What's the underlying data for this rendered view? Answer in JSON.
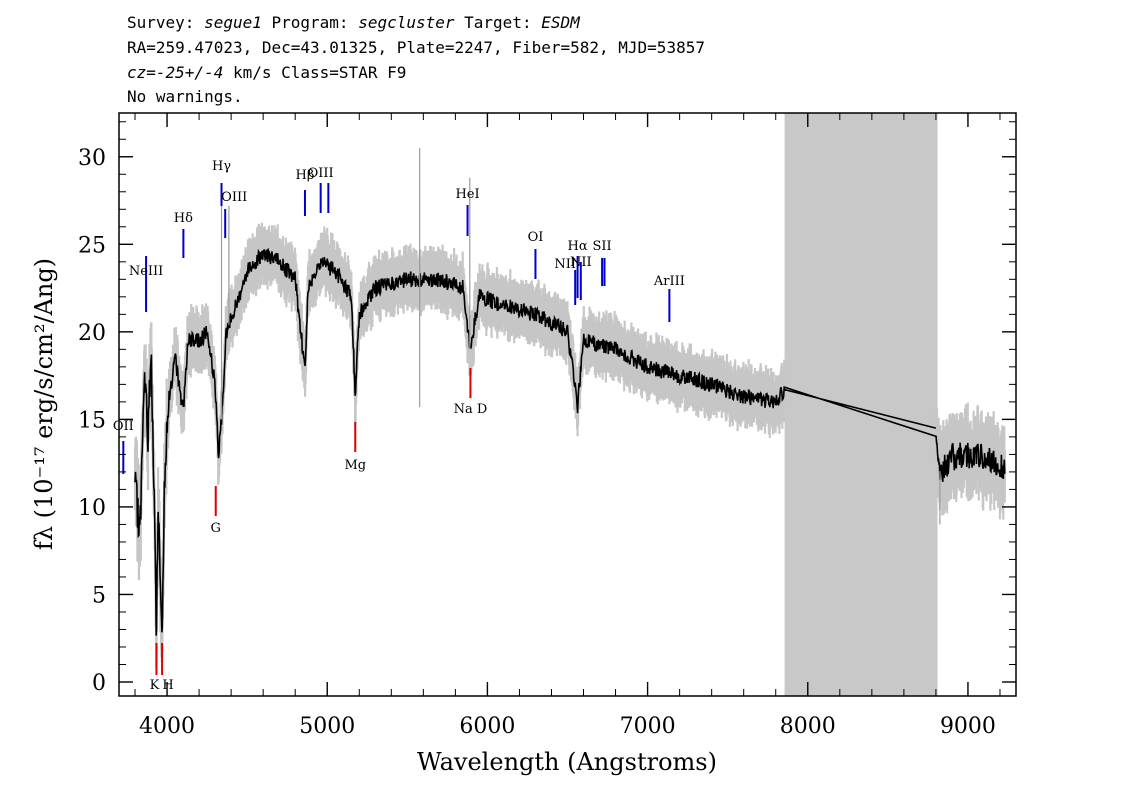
{
  "header": {
    "line1_parts": [
      {
        "text": "Survey: ",
        "style": "normal"
      },
      {
        "text": "segue1",
        "style": "italic"
      },
      {
        "text": " Program: ",
        "style": "normal"
      },
      {
        "text": "segcluster",
        "style": "italic"
      },
      {
        "text": " Target: ",
        "style": "normal"
      },
      {
        "text": "ESDM",
        "style": "italic"
      }
    ],
    "line2": "RA=259.47023, Dec=43.01325, Plate=2247, Fiber=582, MJD=53857",
    "line3_parts": [
      {
        "text": "cz=-25+/-4",
        "style": "italic"
      },
      {
        "text": " km/s Class=STAR F9",
        "style": "normal"
      }
    ],
    "line4": "No warnings."
  },
  "chart_data": {
    "type": "line",
    "xlabel": "Wavelength (Angstroms)",
    "ylabel": "fλ (10⁻¹⁷ erg/s/cm²/Ang)",
    "xlim": [
      3700,
      9300
    ],
    "ylim": [
      -0.8,
      32.5
    ],
    "xticks": [
      4000,
      5000,
      6000,
      7000,
      8000,
      9000
    ],
    "yticks": [
      0,
      5,
      10,
      15,
      20,
      25,
      30
    ],
    "grid": false,
    "colors": {
      "spectrum": "#000000",
      "error": "#c6c6c6",
      "mask": "#c8c8c8",
      "emission": "#0000cc",
      "absorption": "#dd0000"
    },
    "masked_region": [
      7855,
      8810
    ],
    "spectrum_knots": [
      [
        3800,
        11.2
      ],
      [
        3830,
        8.5
      ],
      [
        3860,
        17.5
      ],
      [
        3880,
        14
      ],
      [
        3900,
        19
      ],
      [
        3920,
        10
      ],
      [
        3933,
        2.8
      ],
      [
        3945,
        10
      ],
      [
        3968,
        2.6
      ],
      [
        3985,
        12
      ],
      [
        4010,
        16
      ],
      [
        4050,
        18.5
      ],
      [
        4101,
        15.5
      ],
      [
        4130,
        19.5
      ],
      [
        4200,
        19.5
      ],
      [
        4250,
        20
      ],
      [
        4300,
        17
      ],
      [
        4320,
        13
      ],
      [
        4340,
        15
      ],
      [
        4370,
        20
      ],
      [
        4450,
        22
      ],
      [
        4500,
        23.5
      ],
      [
        4600,
        24.5
      ],
      [
        4700,
        24
      ],
      [
        4800,
        23
      ],
      [
        4861,
        17.8
      ],
      [
        4880,
        22.5
      ],
      [
        4950,
        24
      ],
      [
        5050,
        23.5
      ],
      [
        5150,
        22
      ],
      [
        5175,
        16.5
      ],
      [
        5200,
        21
      ],
      [
        5300,
        22.5
      ],
      [
        5500,
        23
      ],
      [
        5700,
        23
      ],
      [
        5850,
        22.5
      ],
      [
        5890,
        19
      ],
      [
        5950,
        22
      ],
      [
        6100,
        21.5
      ],
      [
        6300,
        21
      ],
      [
        6500,
        20
      ],
      [
        6563,
        15.8
      ],
      [
        6600,
        19.5
      ],
      [
        6800,
        19
      ],
      [
        7000,
        18
      ],
      [
        7200,
        17.5
      ],
      [
        7400,
        17
      ],
      [
        7600,
        16.3
      ],
      [
        7800,
        16
      ],
      [
        7855,
        16.7
      ],
      [
        8800,
        14.5
      ],
      [
        8820,
        12
      ],
      [
        8900,
        12.8
      ],
      [
        9000,
        13
      ],
      [
        9100,
        12.8
      ],
      [
        9230,
        12.3
      ]
    ],
    "spikes": [
      {
        "x": 4340,
        "y": 28.3
      },
      {
        "x": 4386,
        "y": 27.2
      },
      {
        "x": 5577,
        "y": 30.5
      },
      {
        "x": 5577,
        "y": 15.7
      },
      {
        "x": 5890,
        "y": 28.8
      },
      {
        "x": 8825,
        "y": 9
      }
    ],
    "emission_lines": [
      {
        "label": "OII",
        "wave": 3727
      },
      {
        "label": "NeIII",
        "wave": 3869
      },
      {
        "label": "Hδ",
        "wave": 4102
      },
      {
        "label": "Hγ",
        "wave": 4340
      },
      {
        "label": "OIII",
        "wave": 4363
      },
      {
        "label": "Hβ",
        "wave": 4861
      },
      {
        "label": "OIII",
        "wave": 4959
      },
      {
        "label": "OIII",
        "wave": 5007
      },
      {
        "label": "HeI",
        "wave": 5876
      },
      {
        "label": "OI",
        "wave": 6300
      },
      {
        "label": "NII",
        "wave": 6548
      },
      {
        "label": "Hα",
        "wave": 6563
      },
      {
        "label": "NII",
        "wave": 6583
      },
      {
        "label": "SII",
        "wave": 6716
      },
      {
        "label": "SII",
        "wave": 6731
      },
      {
        "label": "ArIII",
        "wave": 7136
      }
    ],
    "absorption_lines": [
      {
        "label": "K",
        "wave": 3934
      },
      {
        "label": "H",
        "wave": 3969
      },
      {
        "label": "G",
        "wave": 4304
      },
      {
        "label": "Mg",
        "wave": 5175
      },
      {
        "label": "Na D",
        "wave": 5894
      }
    ]
  }
}
